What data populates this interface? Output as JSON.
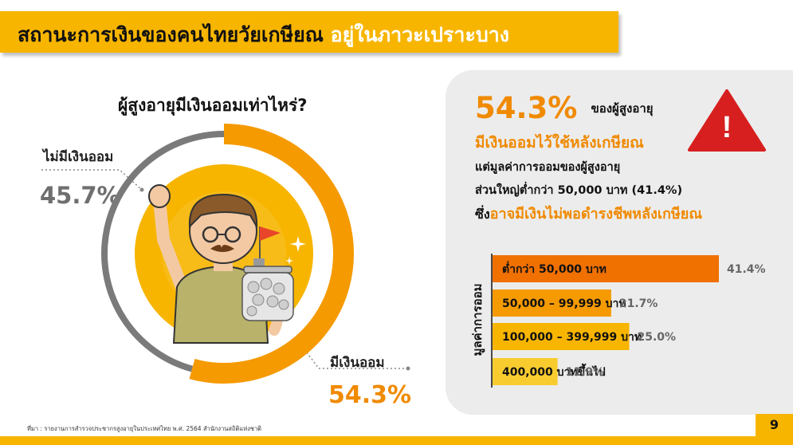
{
  "header": {
    "title_black": "สถานะการเงินของคนไทยวัยเกษียณ",
    "title_white": "อยู่ในภาวะเปราะบาง"
  },
  "donut": {
    "heading": "ผู้สูงอายุมีเงินออมเท่าไหร่?",
    "no_savings_label": "ไม่มีเงินออม",
    "no_savings_value": "45.7%",
    "savings_label": "มีเงินออม",
    "savings_value": "54.3%"
  },
  "summary": {
    "headline_pct": "54.3%",
    "headline_text": "ของผู้สูงอายุ",
    "line2": "มีเงินออมไว้ใช้หลังเกษียณ",
    "line3": "แต่มูลค่าการออมของผู้สูงอายุ",
    "line4": "ส่วนใหญ่ต่ำกว่า 50,000 บาท (41.4%)",
    "line5_prefix": "ซึ่ง",
    "line5_highlight": "อาจมีเงินไม่พอดำรงชีพหลังเกษียณ",
    "warning_mark": "!"
  },
  "footer": {
    "source": "ที่มา : รายงานการสำรวจประชากรสูงอายุในประเทศไทย พ.ศ. 2564 สำนักงานสถิติแห่งชาติ",
    "page_number": "9"
  },
  "colors": {
    "accent_orange": "#f08a00",
    "yellow": "#f7b500",
    "grey_ring": "#7a7a7a",
    "bar_colors": [
      "#f07000",
      "#f59a00",
      "#f7b500",
      "#f8cc2e"
    ]
  },
  "chart_data": [
    {
      "type": "pie",
      "categories": [
        "มีเงินออม",
        "ไม่มีเงินออม"
      ],
      "values": [
        54.3,
        45.7
      ],
      "colors": [
        "#f59a00",
        "#7a7a7a"
      ]
    },
    {
      "type": "bar",
      "orientation": "horizontal",
      "ylabel": "มูลค่าการออม",
      "categories": [
        "ต่ำกว่า 50,000 บาท",
        "50,000 – 99,999 บาท",
        "100,000 – 399,999 บาท",
        "400,000 บาทขึ้นไป"
      ],
      "values": [
        41.4,
        21.7,
        25.0,
        11.9
      ],
      "value_labels": [
        "41.4%",
        "21.7%",
        "25.0%",
        "11.9%"
      ],
      "xlim": [
        0,
        41.4
      ]
    }
  ]
}
